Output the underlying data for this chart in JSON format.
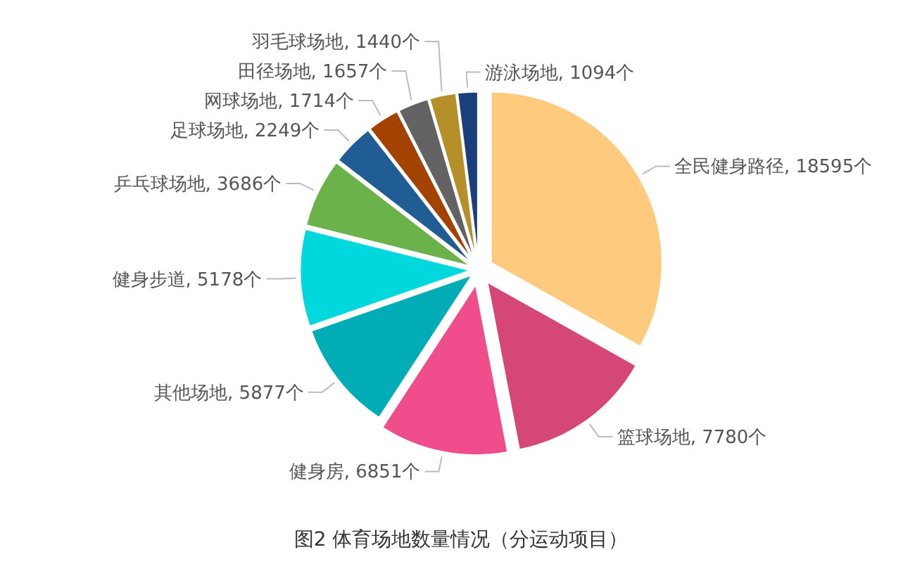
{
  "chart_data": {
    "type": "pie",
    "title": "图2 体育场地数量情况（分运动项目）",
    "categories": [
      "全民健身路径",
      "篮球场地",
      "健身房",
      "其他场地",
      "健身步道",
      "乒乓球场地",
      "足球场地",
      "网球场地",
      "田径场地",
      "羽毛球场地",
      "游泳场地"
    ],
    "values": [
      18595,
      7780,
      6851,
      5877,
      5178,
      3686,
      2249,
      1714,
      1657,
      1440,
      1094
    ],
    "value_labels": [
      "18595个",
      "7780个",
      "6851个",
      "5877个",
      "5178个",
      "3686个",
      "2249个",
      "1714个",
      "1657个",
      "1440个",
      "1094个"
    ],
    "colors": [
      "#fdca7e",
      "#d54775",
      "#f04d8c",
      "#00acb5",
      "#00d8de",
      "#6cb24a",
      "#1f5d94",
      "#a44202",
      "#636363",
      "#b48f2a",
      "#1b3e7c"
    ],
    "legend": false
  }
}
